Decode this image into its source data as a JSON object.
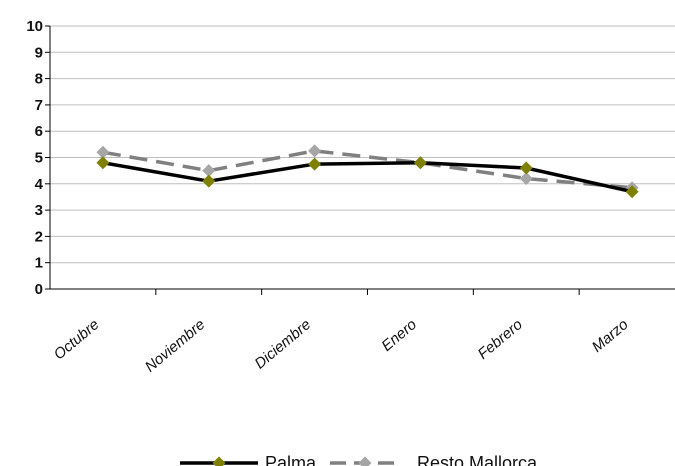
{
  "chart_data": {
    "type": "line",
    "categories": [
      "Octubre",
      "Noviembre",
      "Diciembre",
      "Enero",
      "Febrero",
      "Marzo"
    ],
    "series": [
      {
        "name": "Palma",
        "values": [
          4.8,
          4.1,
          4.75,
          4.8,
          4.6,
          3.7
        ],
        "color": "#000000",
        "marker_color": "#808000",
        "dash": "solid"
      },
      {
        "name": "Resto Mallorca",
        "values": [
          5.2,
          4.5,
          5.25,
          4.8,
          4.2,
          3.85
        ],
        "color": "#808080",
        "marker_color": "#a6a6a6",
        "dash": "dashed"
      }
    ],
    "yticks": [
      "0",
      "1",
      "2",
      "3",
      "4",
      "5",
      "6",
      "7",
      "8",
      "9",
      "10"
    ],
    "ylim": [
      0,
      10
    ],
    "grid": true,
    "legend_position": "bottom"
  }
}
